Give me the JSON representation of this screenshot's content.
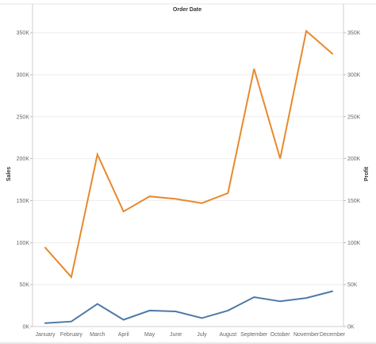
{
  "chart_data": {
    "type": "line",
    "title": "Order Date",
    "ylabel": "Sales",
    "y2label": "Profit",
    "categories": [
      "January",
      "February",
      "March",
      "April",
      "May",
      "June",
      "July",
      "August",
      "September",
      "October",
      "November",
      "December"
    ],
    "ylim": [
      0,
      370000
    ],
    "yticks": [
      0,
      50000,
      100000,
      150000,
      200000,
      250000,
      300000,
      350000
    ],
    "ytick_labels": [
      "0K",
      "50K",
      "100K",
      "150K",
      "200K",
      "250K",
      "300K",
      "350K"
    ],
    "y2ticks": [
      0,
      50000,
      100000,
      150000,
      200000,
      250000,
      300000,
      350000
    ],
    "y2tick_labels": [
      "0K",
      "50K",
      "100K",
      "150K",
      "200K",
      "250K",
      "300K",
      "350K"
    ],
    "grid": true,
    "series": [
      {
        "name": "Sales",
        "axis": "left",
        "color": "#e8892c",
        "values": [
          94000,
          59000,
          205000,
          137000,
          155000,
          152000,
          147000,
          159000,
          307000,
          200000,
          352000,
          325000
        ]
      },
      {
        "name": "Profit",
        "axis": "right",
        "color": "#4e79a7",
        "values": [
          4000,
          6000,
          27000,
          8000,
          19000,
          18000,
          10000,
          19000,
          35000,
          30000,
          34000,
          42000
        ]
      }
    ]
  }
}
